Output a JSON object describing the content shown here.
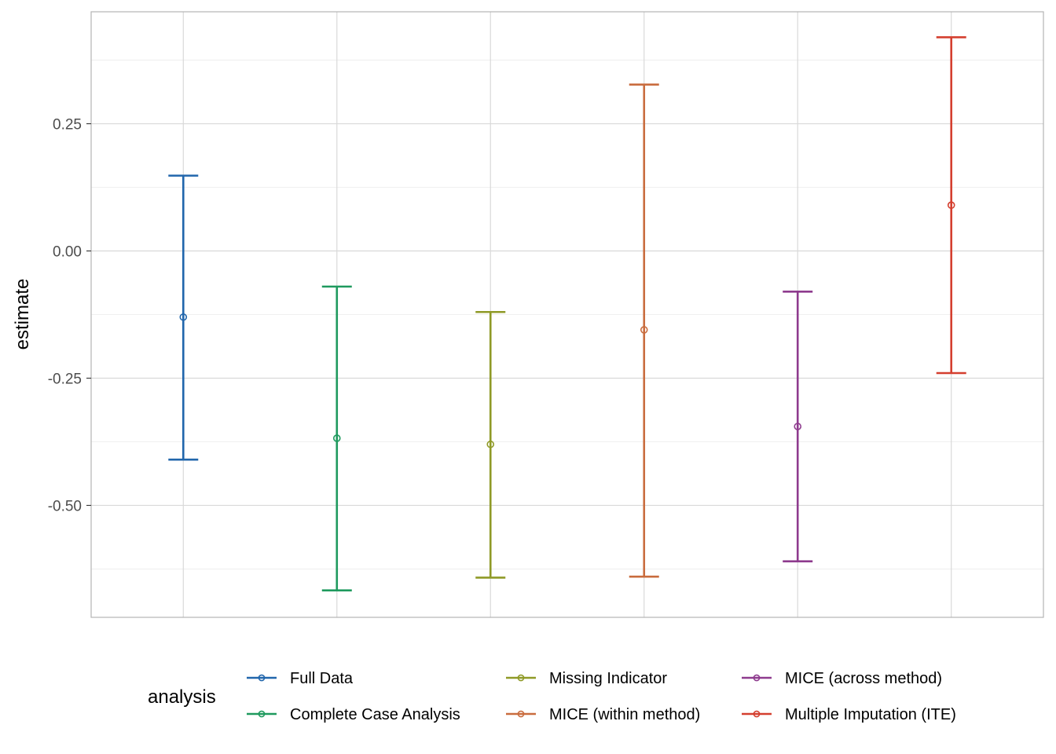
{
  "chart_data": {
    "type": "errorbar",
    "ylabel": "estimate",
    "xlabel": "",
    "title": "",
    "ylim": [
      -0.72,
      0.47
    ],
    "yticks": [
      -0.5,
      -0.25,
      0.0,
      0.25
    ],
    "ytick_labels": [
      "-0.50",
      "-0.25",
      "0.00",
      "0.25"
    ],
    "grid": true,
    "legend_position": "bottom",
    "legend_title": "analysis",
    "series": [
      {
        "name": "Full Data",
        "color": "#2166ac",
        "estimate": -0.13,
        "lower": -0.41,
        "upper": 0.148
      },
      {
        "name": "Complete Case Analysis",
        "color": "#1f9a5e",
        "estimate": -0.368,
        "lower": -0.667,
        "upper": -0.07
      },
      {
        "name": "Missing Indicator",
        "color": "#8f9a27",
        "estimate": -0.38,
        "lower": -0.642,
        "upper": -0.12
      },
      {
        "name": "MICE (within method)",
        "color": "#c96c3e",
        "estimate": -0.155,
        "lower": -0.64,
        "upper": 0.327
      },
      {
        "name": "MICE (across method)",
        "color": "#8e3b8e",
        "estimate": -0.345,
        "lower": -0.61,
        "upper": -0.08
      },
      {
        "name": "Multiple Imputation (ITE)",
        "color": "#d43f2f",
        "estimate": 0.09,
        "lower": -0.24,
        "upper": 0.42
      }
    ]
  }
}
